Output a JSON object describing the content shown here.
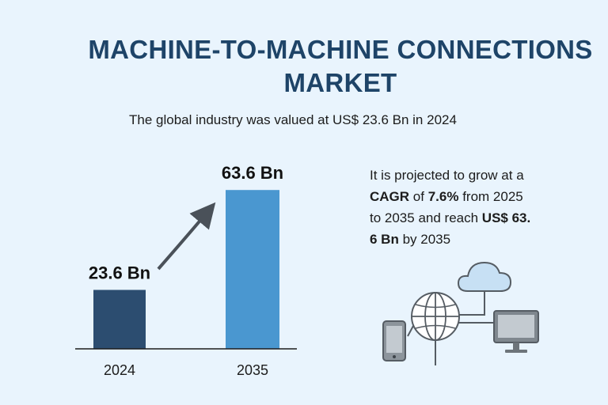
{
  "title": "MACHINE-TO-MACHINE CONNECTIONS MARKET",
  "subtitle": "The global industry was valued at US$ 23.6 Bn in 2024",
  "projection": {
    "line1": "It is projected to grow at a",
    "cagr_label": "CAGR",
    "of_word": "of",
    "cagr_value": "7.6%",
    "line2_rest": "from 2025",
    "line3_start": "to 2035 and reach",
    "value_part1": "US$ 63.",
    "value_part2": "6 Bn",
    "line4_rest": "by 2035"
  },
  "chart_data": {
    "type": "bar",
    "categories": [
      "2024",
      "2035"
    ],
    "values": [
      23.6,
      63.6
    ],
    "data_labels": [
      "23.6 Bn",
      "63.6 Bn"
    ],
    "ylim": [
      0,
      70
    ],
    "grid": false,
    "bar_colors": [
      "#2c4d70",
      "#4a97d0"
    ],
    "title": "",
    "xlabel": "",
    "ylabel": ""
  },
  "colors": {
    "background": "#e9f4fd",
    "title": "#1e4468",
    "arrow": "#4a5159",
    "icon_stroke": "#555c63",
    "cloud_fill": "#c7e0f4"
  },
  "icons": [
    "cloud-icon",
    "globe-icon",
    "smartphone-icon",
    "monitor-icon",
    "growth-arrow-icon"
  ]
}
